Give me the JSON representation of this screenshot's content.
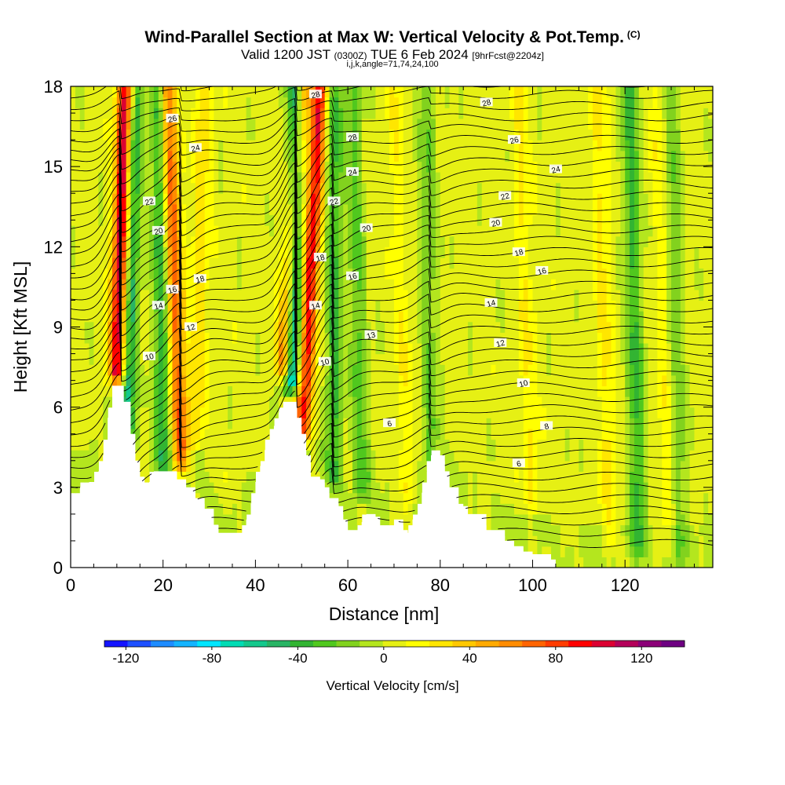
{
  "header": {
    "title": "Wind-Parallel Section at Max W: Vertical Velocity & Pot.Temp.",
    "title_suffix": "(C)",
    "valid_prefix": "Valid 1200 JST",
    "valid_utc": "(0300Z)",
    "valid_date": "TUE 6 Feb 2024",
    "forecast": "[9hrFcst@2204z]",
    "params": "i,j,k,angle=71,74,24,100"
  },
  "colorbar": {
    "label": "Vertical Velocity [cm/s]",
    "min": -130,
    "max": 140,
    "tick_values": [
      -120,
      -80,
      -40,
      0,
      40,
      80,
      120
    ],
    "tick_labels": [
      "-120",
      "-80",
      "-40",
      "0",
      "40",
      "80",
      "120"
    ],
    "colors": [
      "#1414ff",
      "#1e50ff",
      "#1e8cff",
      "#14b4ff",
      "#00e6ff",
      "#00dcb4",
      "#14c88c",
      "#28b464",
      "#32b432",
      "#50c81e",
      "#82d21e",
      "#b4e61e",
      "#e6f014",
      "#ffff00",
      "#ffe600",
      "#ffc800",
      "#ffaa00",
      "#ff8c00",
      "#ff6400",
      "#ff3c00",
      "#ff0000",
      "#dc0032",
      "#b4005a",
      "#8c0078",
      "#6e0082"
    ]
  },
  "chart_data": {
    "type": "heatmap",
    "title": "Wind-Parallel Section at Max W: Vertical Velocity & Pot.Temp.",
    "xlabel": "Distance [nm]",
    "ylabel": "Height [Kft MSL]",
    "xlim": [
      0,
      139
    ],
    "ylim": [
      0,
      18
    ],
    "x_ticks": [
      0,
      20,
      40,
      60,
      80,
      100,
      120
    ],
    "x_tick_labels": [
      "0",
      "20",
      "40",
      "60",
      "80",
      "100",
      "120"
    ],
    "y_ticks": [
      0,
      3,
      6,
      9,
      12,
      15,
      18
    ],
    "y_tick_labels": [
      "0",
      "3",
      "6",
      "9",
      "12",
      "15",
      "18"
    ],
    "grid": false,
    "fill_variable": "Vertical Velocity [cm/s]",
    "contour_variable": "Potential Temperature [C]",
    "terrain_kft": [
      [
        0,
        2.6
      ],
      [
        2,
        3.0
      ],
      [
        4,
        3.2
      ],
      [
        6,
        3.6
      ],
      [
        7,
        4.2
      ],
      [
        8,
        5.6
      ],
      [
        9,
        6.8
      ],
      [
        11,
        6.8
      ],
      [
        11.5,
        6.2
      ],
      [
        12.5,
        6.2
      ],
      [
        13,
        5.0
      ],
      [
        14,
        4.0
      ],
      [
        15,
        3.4
      ],
      [
        16,
        2.9
      ],
      [
        17,
        3.2
      ],
      [
        18,
        3.6
      ],
      [
        22,
        3.6
      ],
      [
        23,
        3.3
      ],
      [
        25,
        3.0
      ],
      [
        27,
        2.6
      ],
      [
        29,
        2.2
      ],
      [
        31,
        1.6
      ],
      [
        32,
        1.3
      ],
      [
        37,
        1.3
      ],
      [
        38,
        1.8
      ],
      [
        39,
        2.4
      ],
      [
        40,
        3.2
      ],
      [
        41,
        3.8
      ],
      [
        42,
        4.4
      ],
      [
        44,
        5.3
      ],
      [
        45,
        5.8
      ],
      [
        46,
        6.2
      ],
      [
        48,
        6.2
      ],
      [
        49,
        5.6
      ],
      [
        50,
        5.0
      ],
      [
        51,
        4.2
      ],
      [
        52,
        3.4
      ],
      [
        54,
        3.3
      ],
      [
        55,
        3.0
      ],
      [
        56,
        2.6
      ],
      [
        58,
        2.3
      ],
      [
        59,
        1.8
      ],
      [
        60,
        1.4
      ],
      [
        62,
        1.4
      ],
      [
        63,
        1.7
      ],
      [
        64,
        2.0
      ],
      [
        66,
        1.9
      ],
      [
        67,
        1.5
      ],
      [
        68,
        1.5
      ],
      [
        70,
        1.8
      ],
      [
        72,
        1.4
      ],
      [
        73,
        1.3
      ],
      [
        74,
        1.8
      ],
      [
        76,
        2.8
      ],
      [
        78,
        4.2
      ],
      [
        80,
        4.2
      ],
      [
        81,
        3.6
      ],
      [
        82,
        3.0
      ],
      [
        84,
        2.3
      ],
      [
        86,
        2.0
      ],
      [
        88,
        2.0
      ],
      [
        90,
        1.4
      ],
      [
        92,
        1.4
      ],
      [
        94,
        1.0
      ],
      [
        96,
        0.8
      ],
      [
        98,
        0.6
      ],
      [
        100,
        0.5
      ],
      [
        104,
        0.3
      ],
      [
        105,
        0.0
      ],
      [
        139,
        0.0
      ]
    ],
    "updraft_bands": [
      {
        "x_base": 10,
        "x_top": 12,
        "y_bottom": 6.8,
        "peak_cm_s": 110
      },
      {
        "x_base": 24,
        "x_top": 21,
        "y_bottom": 3.5,
        "peak_cm_s": 70
      },
      {
        "x_base": 50,
        "x_top": 54,
        "y_bottom": 4.5,
        "peak_cm_s": 90
      },
      {
        "x_base": 46,
        "x_top": 50,
        "y_bottom": 7.0,
        "peak_cm_s": 80
      },
      {
        "x_base": 27,
        "x_top": 29,
        "y_bottom": 4.5,
        "peak_cm_s": 25
      },
      {
        "x_base": 73,
        "x_top": 70,
        "y_bottom": 2.0,
        "peak_cm_s": 15
      },
      {
        "x_base": 100,
        "x_top": 97,
        "y_bottom": 2.0,
        "peak_cm_s": 18
      },
      {
        "x_base": 117,
        "x_top": 114,
        "y_bottom": 0.5,
        "peak_cm_s": 20
      },
      {
        "x_base": 130,
        "x_top": 127,
        "y_bottom": 0.5,
        "peak_cm_s": 15
      }
    ],
    "downdraft_bands": [
      {
        "x_base": 12,
        "x_top": 14,
        "y_bottom": 4.5,
        "peak_cm_s": -60
      },
      {
        "x_base": 20,
        "x_top": 19,
        "y_bottom": 3.5,
        "peak_cm_s": -45
      },
      {
        "x_base": 48,
        "x_top": 49,
        "y_bottom": 6.5,
        "peak_cm_s": -100
      },
      {
        "x_base": 57,
        "x_top": 57,
        "y_bottom": 3.0,
        "peak_cm_s": -40
      },
      {
        "x_base": 63,
        "x_top": 61,
        "y_bottom": 2.5,
        "peak_cm_s": -30
      },
      {
        "x_base": 78,
        "x_top": 77,
        "y_bottom": 3.0,
        "peak_cm_s": -25
      },
      {
        "x_base": 123,
        "x_top": 121,
        "y_bottom": 0.3,
        "peak_cm_s": -40
      },
      {
        "x_base": 132,
        "x_top": 130,
        "y_bottom": 0.3,
        "peak_cm_s": -25
      }
    ],
    "isentrope_labels": [
      {
        "text": "28",
        "x": 53,
        "y": 17.7
      },
      {
        "text": "28",
        "x": 90,
        "y": 17.4
      },
      {
        "text": "26",
        "x": 22,
        "y": 16.8
      },
      {
        "text": "28",
        "x": 61,
        "y": 16.1
      },
      {
        "text": "26",
        "x": 96,
        "y": 16.0
      },
      {
        "text": "24",
        "x": 27,
        "y": 15.7
      },
      {
        "text": "24",
        "x": 61,
        "y": 14.8
      },
      {
        "text": "24",
        "x": 105,
        "y": 14.9
      },
      {
        "text": "22",
        "x": 17,
        "y": 13.7
      },
      {
        "text": "22",
        "x": 57,
        "y": 13.7
      },
      {
        "text": "22",
        "x": 94,
        "y": 13.9
      },
      {
        "text": "20",
        "x": 19,
        "y": 12.6
      },
      {
        "text": "20",
        "x": 64,
        "y": 12.7
      },
      {
        "text": "20",
        "x": 92,
        "y": 12.9
      },
      {
        "text": "18",
        "x": 54,
        "y": 11.6
      },
      {
        "text": "18",
        "x": 97,
        "y": 11.8
      },
      {
        "text": "18",
        "x": 28,
        "y": 10.8
      },
      {
        "text": "16",
        "x": 61,
        "y": 10.9
      },
      {
        "text": "16",
        "x": 102,
        "y": 11.1
      },
      {
        "text": "16",
        "x": 22,
        "y": 10.4
      },
      {
        "text": "14",
        "x": 19,
        "y": 9.8
      },
      {
        "text": "14",
        "x": 53,
        "y": 9.8
      },
      {
        "text": "14",
        "x": 91,
        "y": 9.9
      },
      {
        "text": "12",
        "x": 26,
        "y": 9.0
      },
      {
        "text": "13",
        "x": 65,
        "y": 8.7
      },
      {
        "text": "12",
        "x": 93,
        "y": 8.4
      },
      {
        "text": "10",
        "x": 17,
        "y": 7.9
      },
      {
        "text": "10",
        "x": 55,
        "y": 7.7
      },
      {
        "text": "10",
        "x": 98,
        "y": 6.9
      },
      {
        "text": "6",
        "x": 69,
        "y": 5.4
      },
      {
        "text": "8",
        "x": 103,
        "y": 5.3
      },
      {
        "text": "6",
        "x": 97,
        "y": 3.9
      }
    ]
  }
}
